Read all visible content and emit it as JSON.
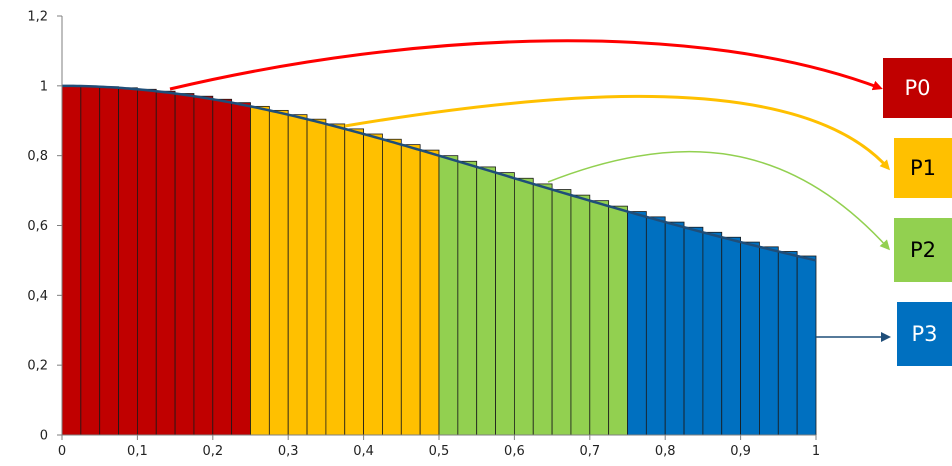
{
  "chart_data": {
    "type": "bar",
    "function": "1/(1+x^2)",
    "xlim": [
      0,
      1
    ],
    "ylim": [
      0,
      1.2
    ],
    "x_ticks": [
      "0",
      "0,1",
      "0,2",
      "0,3",
      "0,4",
      "0,5",
      "0,6",
      "0,7",
      "0,8",
      "0,9",
      "1"
    ],
    "y_ticks": [
      "0",
      "0,2",
      "0,4",
      "0,6",
      "0,8",
      "1",
      "1,2"
    ],
    "bar_count": 40,
    "bar_width": 0.025,
    "groups": [
      {
        "label": "P0",
        "color": "#C00000",
        "range": [
          0,
          0.25
        ],
        "label_color": "#FFFFFF"
      },
      {
        "label": "P1",
        "color": "#FFC000",
        "range": [
          0.25,
          0.5
        ],
        "label_color": "#000000"
      },
      {
        "label": "P2",
        "color": "#92D050",
        "range": [
          0.5,
          0.75
        ],
        "label_color": "#000000"
      },
      {
        "label": "P3",
        "color": "#0070C0",
        "range": [
          0.75,
          1.0
        ],
        "label_color": "#FFFFFF"
      }
    ],
    "arrow_colors": [
      "#FF0000",
      "#FFC000",
      "#92D050",
      "#1F4E79"
    ],
    "curve_color": "#1F4E79",
    "grid": false,
    "legend": "right"
  }
}
